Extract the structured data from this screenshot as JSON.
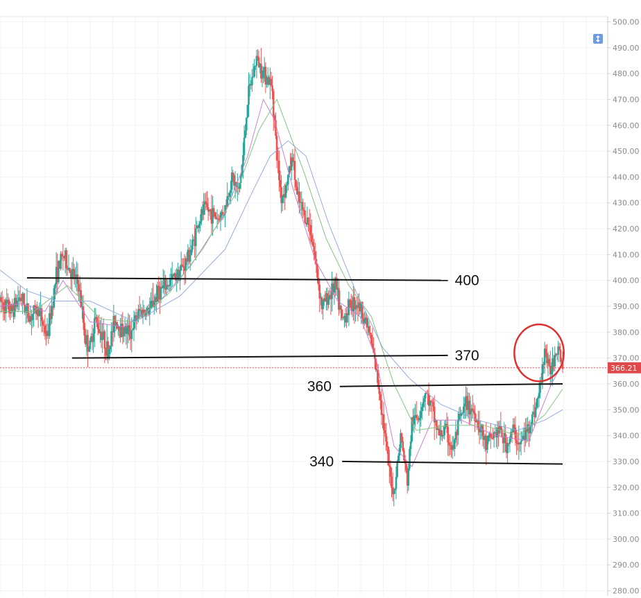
{
  "chart_data": {
    "type": "candlestick",
    "y_axis": {
      "side": "right",
      "range": [
        278,
        502
      ],
      "ticks": [
        "280.00",
        "290.00",
        "300.00",
        "310.00",
        "320.00",
        "330.00",
        "340.00",
        "350.00",
        "360.00",
        "370.00",
        "380.00",
        "390.00",
        "400.00",
        "410.00",
        "420.00",
        "430.00",
        "440.00",
        "450.00",
        "460.00",
        "470.00",
        "480.00",
        "490.00",
        "500.00"
      ]
    },
    "grid": true,
    "last_price": {
      "label": "366.21",
      "value": 366.21,
      "color": "#e0484a"
    },
    "colors": {
      "up": "#26a69a",
      "down": "#ef5350",
      "ma_fast": "#c97ad3",
      "ma_mid": "#7dc27f",
      "ma_slow": "#8fa8dc",
      "annotation": "#111111",
      "highlight": "#e03030"
    },
    "price_path": [
      [
        0,
        392
      ],
      [
        5,
        388
      ],
      [
        9,
        394
      ],
      [
        13,
        386
      ],
      [
        17,
        389
      ],
      [
        21,
        378
      ],
      [
        25,
        402
      ],
      [
        28,
        410
      ],
      [
        31,
        404
      ],
      [
        35,
        398
      ],
      [
        38,
        377
      ],
      [
        40,
        374
      ],
      [
        42,
        385
      ],
      [
        45,
        380
      ],
      [
        48,
        372
      ],
      [
        51,
        385
      ],
      [
        54,
        381
      ],
      [
        58,
        380
      ],
      [
        62,
        388
      ],
      [
        66,
        388
      ],
      [
        70,
        395
      ],
      [
        74,
        398
      ],
      [
        78,
        402
      ],
      [
        82,
        406
      ],
      [
        85,
        412
      ],
      [
        88,
        422
      ],
      [
        91,
        428
      ],
      [
        94,
        426
      ],
      [
        97,
        424
      ],
      [
        100,
        428
      ],
      [
        103,
        440
      ],
      [
        106,
        434
      ],
      [
        108,
        448
      ],
      [
        110,
        470
      ],
      [
        112,
        478
      ],
      [
        114,
        486
      ],
      [
        116,
        482
      ],
      [
        119,
        478
      ],
      [
        121,
        474
      ],
      [
        123,
        448
      ],
      [
        125,
        432
      ],
      [
        127,
        436
      ],
      [
        130,
        448
      ],
      [
        132,
        432
      ],
      [
        135,
        426
      ],
      [
        138,
        420
      ],
      [
        141,
        402
      ],
      [
        143,
        390
      ],
      [
        146,
        394
      ],
      [
        149,
        398
      ],
      [
        152,
        384
      ],
      [
        155,
        390
      ],
      [
        158,
        392
      ],
      [
        161,
        388
      ],
      [
        164,
        380
      ],
      [
        167,
        366
      ],
      [
        169,
        355
      ],
      [
        171,
        340
      ],
      [
        173,
        325
      ],
      [
        175,
        318
      ],
      [
        178,
        340
      ],
      [
        181,
        322
      ],
      [
        183,
        345
      ],
      [
        186,
        348
      ],
      [
        189,
        357
      ],
      [
        192,
        350
      ],
      [
        195,
        340
      ],
      [
        198,
        342
      ],
      [
        201,
        334
      ],
      [
        204,
        345
      ],
      [
        207,
        352
      ],
      [
        210,
        350
      ],
      [
        213,
        344
      ],
      [
        216,
        336
      ],
      [
        219,
        340
      ],
      [
        222,
        342
      ],
      [
        225,
        336
      ],
      [
        228,
        342
      ],
      [
        231,
        336
      ],
      [
        234,
        342
      ],
      [
        237,
        348
      ],
      [
        240,
        358
      ],
      [
        242,
        374
      ],
      [
        244,
        364
      ],
      [
        246,
        370
      ],
      [
        248,
        376
      ],
      [
        250,
        366
      ]
    ],
    "moving_averages": [
      {
        "name": "",
        "color": "#c97ad3",
        "values": [
          [
            0,
            390
          ],
          [
            10,
            391
          ],
          [
            20,
            388
          ],
          [
            28,
            400
          ],
          [
            40,
            384
          ],
          [
            55,
            382
          ],
          [
            70,
            391
          ],
          [
            85,
            406
          ],
          [
            100,
            426
          ],
          [
            110,
            448
          ],
          [
            117,
            470
          ],
          [
            122,
            462
          ],
          [
            130,
            436
          ],
          [
            140,
            408
          ],
          [
            150,
            392
          ],
          [
            160,
            386
          ],
          [
            167,
            370
          ],
          [
            175,
            336
          ],
          [
            183,
            328
          ],
          [
            192,
            346
          ],
          [
            205,
            346
          ],
          [
            220,
            340
          ],
          [
            235,
            338
          ],
          [
            245,
            360
          ],
          [
            250,
            368
          ]
        ]
      },
      {
        "name": "",
        "color": "#7dc27f",
        "values": [
          [
            0,
            388
          ],
          [
            15,
            388
          ],
          [
            30,
            398
          ],
          [
            45,
            385
          ],
          [
            60,
            384
          ],
          [
            75,
            395
          ],
          [
            90,
            412
          ],
          [
            105,
            434
          ],
          [
            115,
            458
          ],
          [
            123,
            470
          ],
          [
            135,
            442
          ],
          [
            145,
            416
          ],
          [
            155,
            398
          ],
          [
            165,
            386
          ],
          [
            175,
            360
          ],
          [
            185,
            342
          ],
          [
            200,
            344
          ],
          [
            215,
            344
          ],
          [
            230,
            340
          ],
          [
            242,
            348
          ],
          [
            250,
            358
          ]
        ]
      },
      {
        "name": "",
        "color": "#8fa8dc",
        "values": [
          [
            0,
            404
          ],
          [
            12,
            396
          ],
          [
            25,
            392
          ],
          [
            40,
            392
          ],
          [
            60,
            384
          ],
          [
            80,
            394
          ],
          [
            100,
            412
          ],
          [
            112,
            434
          ],
          [
            120,
            448
          ],
          [
            128,
            454
          ],
          [
            136,
            448
          ],
          [
            146,
            422
          ],
          [
            158,
            396
          ],
          [
            170,
            374
          ],
          [
            182,
            362
          ],
          [
            196,
            352
          ],
          [
            212,
            346
          ],
          [
            230,
            342
          ],
          [
            242,
            346
          ],
          [
            250,
            350
          ]
        ]
      }
    ],
    "annotations": [
      {
        "label": "400",
        "from": [
          12,
          401
        ],
        "to": [
          199,
          400
        ]
      },
      {
        "label": "370",
        "from": [
          32,
          370
        ],
        "to": [
          199,
          371
        ]
      },
      {
        "label": "360",
        "from": [
          151,
          359
        ],
        "to": [
          250,
          360
        ]
      },
      {
        "label": "340",
        "from": [
          152,
          330
        ],
        "to": [
          250,
          329
        ]
      }
    ],
    "highlight": {
      "shape": "circle",
      "center": [
        239.5,
        372
      ],
      "radius_x": 11,
      "radius_y": 11
    }
  }
}
